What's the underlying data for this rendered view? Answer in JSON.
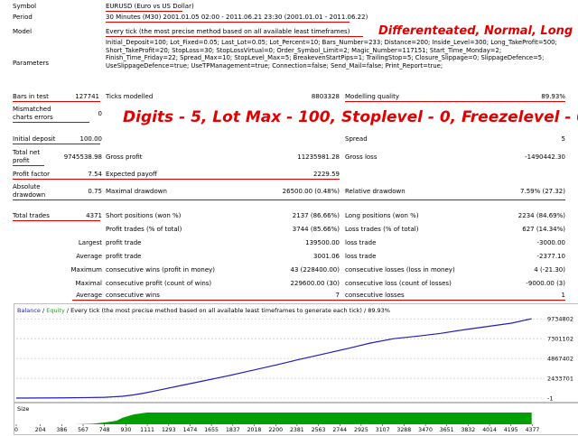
{
  "header": {
    "symbol_label": "Symbol",
    "symbol_value": "EURUSD (Euro vs US Dollar)",
    "period_label": "Period",
    "period_value": "30 Minutes (M30) 2001.01.05 02:00 - 2011.06.21 23:30 (2001.01.01 - 2011.06.22)",
    "model_label": "Model",
    "model_value": "Every tick (the most precise method based on all available least timeframes)",
    "parameters_label": "Parameters",
    "parameters_value": "Initial_Deposit=100; Lot_Fixed=0.05; Last_Lot=0.05; Lot_Percent=10; Bars_Number=233; Distance=200; Inside_Level=300; Long_TakeProfit=500; Short_TakeProfit=20; StopLoss=30; StopLossVirtual=0; Order_Symbol_Limit=2; Magic_Number=117151; Start_Time_Monday=2; Finish_Time_Friday=22; Spread_Max=10; StopLevel_Max=5; BreakevenStartPips=1; TrailingStop=5; Closure_Slippage=0; SlippageDefence=5; UseSlippageDefence=true; UseTPManagement=true; Connection=false; Send_Mail=false; Print_Report=true;"
  },
  "annotations": {
    "mode_note": "Differenteated, Normal, Long",
    "digits_note": "Digits - 5, Lot Max - 100, Stoplevel - 0, Freezelevel - 0"
  },
  "stats": {
    "bars_in_test_label": "Bars in test",
    "bars_in_test_value": "127741",
    "ticks_modelled_label": "Ticks modelled",
    "ticks_modelled_value": "8803328",
    "modelling_quality_label": "Modelling quality",
    "modelling_quality_value": "89.93%",
    "mismatched_label_1": "Mismatched",
    "mismatched_label_2": "charts errors",
    "mismatched_value": "0",
    "initial_deposit_label": "Initial deposit",
    "initial_deposit_value": "100.00",
    "spread_label": "Spread",
    "spread_value": "5",
    "total_net_label_1": "Total net",
    "total_net_label_2": "profit",
    "total_net_value": "9745538.98",
    "gross_profit_label": "Gross profit",
    "gross_profit_value": "11235981.28",
    "gross_loss_label": "Gross loss",
    "gross_loss_value": "-1490442.30",
    "profit_factor_label": "Profit factor",
    "profit_factor_value": "7.54",
    "expected_payoff_label": "Expected payoff",
    "expected_payoff_value": "2229.59",
    "absolute_dd_label_1": "Absolute",
    "absolute_dd_label_2": "drawdown",
    "absolute_dd_value": "0.75",
    "maximal_dd_label": "Maximal drawdown",
    "maximal_dd_value": "26500.00 (0.48%)",
    "relative_dd_label": "Relative drawdown",
    "relative_dd_value": "7.59% (27.32)",
    "total_trades_label": "Total trades",
    "total_trades_value": "4371",
    "short_pos_label": "Short positions (won %)",
    "short_pos_value": "2137 (86.66%)",
    "long_pos_label": "Long positions (won %)",
    "long_pos_value": "2234 (84.69%)",
    "profit_trades_label": "Profit trades (% of total)",
    "profit_trades_value": "3744 (85.66%)",
    "loss_trades_label": "Loss trades (% of total)",
    "loss_trades_value": "627 (14.34%)",
    "largest_label": "Largest",
    "largest_profit_label": "profit trade",
    "largest_profit_value": "139500.00",
    "largest_loss_label": "loss trade",
    "largest_loss_value": "-3000.00",
    "average_label": "Average",
    "average_profit_label": "profit trade",
    "average_profit_value": "3001.06",
    "average_loss_label": "loss trade",
    "average_loss_value": "-2377.10",
    "maximum_label": "Maximum",
    "max_cons_wins_label": "consecutive wins (profit in money)",
    "max_cons_wins_value": "43 (228400.00)",
    "max_cons_losses_label": "consecutive losses (loss in money)",
    "max_cons_losses_value": "4 (-21.30)",
    "maximal_label": "Maximal",
    "maximal_cons_profit_label": "consecutive profit (count of wins)",
    "maximal_cons_profit_value": "229600.00 (30)",
    "maximal_cons_loss_label": "consecutive loss (count of losses)",
    "maximal_cons_loss_value": "-9000.00 (3)",
    "average2_label": "Average",
    "avg_cons_wins_label": "consecutive wins",
    "avg_cons_wins_value": "7",
    "avg_cons_losses_label": "consecutive losses",
    "avg_cons_losses_value": "1"
  },
  "chart_data": {
    "type": "line",
    "legend": {
      "balance": "Balance",
      "separator": " / ",
      "equity": "Equity",
      "rest": " / Every tick (the most precise method based on all available least timeframes to generate each tick) / 89.93%"
    },
    "y_ticks": [
      "9734802",
      "7301102",
      "4867402",
      "2433701",
      "-1"
    ],
    "ylim": [
      -1,
      10200000
    ],
    "xlim": [
      0,
      4450
    ],
    "x_ticks": [
      0,
      204,
      386,
      567,
      748,
      930,
      1111,
      1293,
      1474,
      1655,
      1837,
      2018,
      2200,
      2381,
      2563,
      2744,
      2925,
      3107,
      3288,
      3470,
      3651,
      3832,
      4014,
      4195,
      4377
    ],
    "series": [
      {
        "name": "Balance",
        "x": [
          0,
          200,
          400,
          600,
          750,
          900,
          1000,
          1100,
          1200,
          1400,
          1600,
          1800,
          2000,
          2200,
          2400,
          2600,
          2800,
          3000,
          3200,
          3400,
          3600,
          3800,
          4000,
          4200,
          4371
        ],
        "values": [
          100,
          15000,
          30000,
          60000,
          100000,
          220000,
          400000,
          650000,
          950000,
          1550000,
          2150000,
          2750000,
          3400000,
          4050000,
          4750000,
          5400000,
          6050000,
          6750000,
          7300000,
          7600000,
          7950000,
          8400000,
          8800000,
          9200000,
          9745539
        ]
      }
    ],
    "size_panel": {
      "label": "Size",
      "x": [
        0,
        300,
        500,
        650,
        750,
        850,
        900,
        950,
        1000,
        1111,
        4371
      ],
      "values": [
        0,
        0,
        0,
        5,
        15,
        30,
        55,
        70,
        85,
        100,
        100
      ],
      "ylim": [
        0,
        100
      ]
    },
    "colors": {
      "balance": "#1f1fb8",
      "equity": "#2aa02a",
      "size": "#00a000",
      "grid": "#bfbfbf",
      "accent": "#e00000"
    }
  }
}
